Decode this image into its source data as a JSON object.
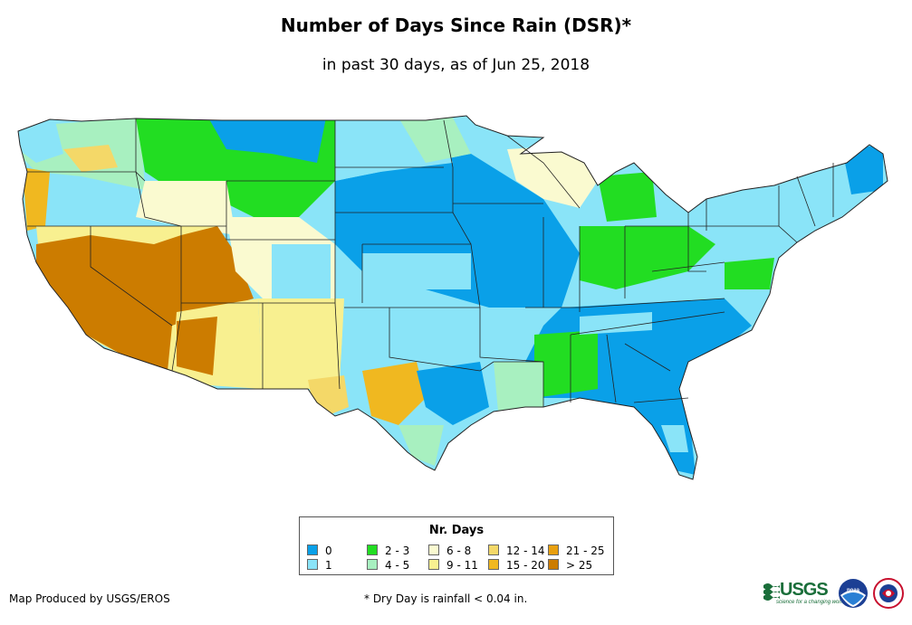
{
  "title": "Number of Days Since Rain (DSR)*",
  "subtitle": "in past 30 days, as of Jun 25, 2018",
  "legend": {
    "title": "Nr. Days",
    "items": [
      {
        "label": "0",
        "color": "#0aa0e8"
      },
      {
        "label": "1",
        "color": "#8ae4f8"
      },
      {
        "label": "2 - 3",
        "color": "#22dd22"
      },
      {
        "label": "4 - 5",
        "color": "#a8f0c0"
      },
      {
        "label": "6 - 8",
        "color": "#fafad0"
      },
      {
        "label": "9 - 11",
        "color": "#f8f090"
      },
      {
        "label": "12 - 14",
        "color": "#f4d868"
      },
      {
        "label": "15 - 20",
        "color": "#f0b820"
      },
      {
        "label": "21 - 25",
        "color": "#e8a010"
      },
      {
        "label": "> 25",
        "color": "#cc7c00"
      }
    ]
  },
  "credit": "Map Produced by USGS/EROS",
  "footnote": "* Dry Day is rainfall < 0.04 in.",
  "logos": {
    "usgs": "USGS",
    "usgs_tagline": "science for a changing world",
    "noaa": "NOAA",
    "nws": "National Weather Service"
  }
}
